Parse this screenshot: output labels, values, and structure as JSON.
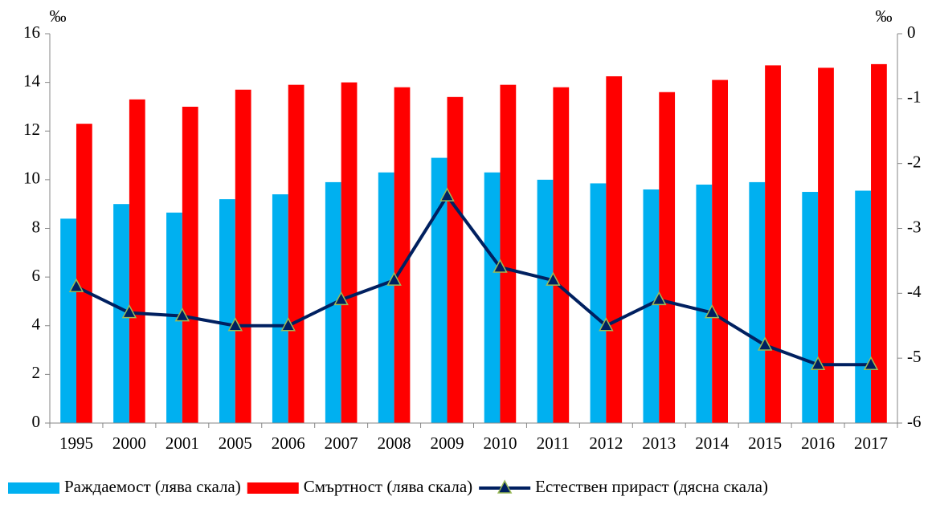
{
  "chart_data": {
    "type": "bar-line",
    "y_unit": "‰",
    "y2_unit": "‰",
    "categories": [
      "1995",
      "2000",
      "2001",
      "2005",
      "2006",
      "2007",
      "2008",
      "2009",
      "2010",
      "2011",
      "2012",
      "2013",
      "2014",
      "2015",
      "2016",
      "2017"
    ],
    "series": [
      {
        "name": "Раждаемост (лява скала)",
        "type": "bar",
        "color": "#00b0f0",
        "values": [
          8.4,
          9.0,
          8.65,
          9.2,
          9.4,
          9.9,
          10.3,
          10.9,
          10.3,
          10.0,
          9.85,
          9.6,
          9.8,
          9.9,
          9.5,
          9.55
        ]
      },
      {
        "name": "Смъртност (лява скала)",
        "type": "bar",
        "color": "#ff0000",
        "values": [
          12.3,
          13.3,
          13.0,
          13.7,
          13.9,
          14.0,
          13.8,
          13.4,
          13.9,
          13.8,
          14.25,
          13.6,
          14.1,
          14.7,
          14.6,
          14.75
        ]
      },
      {
        "name": "Естествен прираст (дясна скала)",
        "type": "line",
        "axis": "y2",
        "color": "#002060",
        "marker": "triangle",
        "marker_edge_color": "#9bbb59",
        "values": [
          -3.9,
          -4.3,
          -4.35,
          -4.5,
          -4.5,
          -4.1,
          -3.8,
          -2.5,
          -3.6,
          -3.8,
          -4.5,
          -4.1,
          -4.3,
          -4.8,
          -5.1,
          -5.1
        ]
      }
    ],
    "ylim": [
      0,
      16
    ],
    "yticks": [
      0,
      2,
      4,
      6,
      8,
      10,
      12,
      14,
      16
    ],
    "y2lim": [
      -6,
      0
    ],
    "y2ticks": [
      -6,
      -5,
      -4,
      -3,
      -2,
      -1,
      0
    ],
    "legend": "bottom"
  }
}
